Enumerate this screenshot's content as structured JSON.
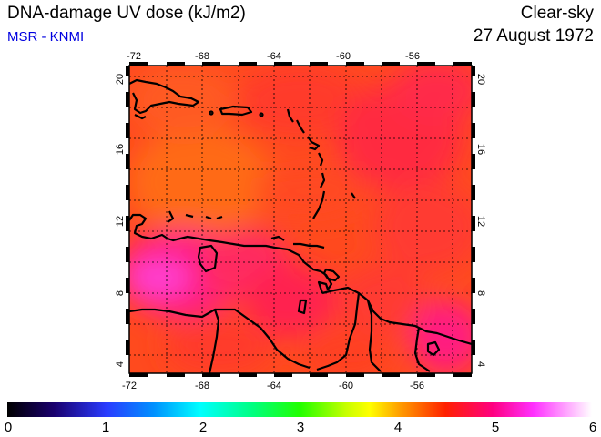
{
  "header": {
    "title": "DNA-damage UV dose (kJ/m2)",
    "source": "MSR - KNMI",
    "condition": "Clear-sky",
    "date": "27 August 1972"
  },
  "map": {
    "lon_range": [
      -72,
      -53
    ],
    "lat_range": [
      4,
      20
    ],
    "lon_ticks": [
      "-72",
      "-68",
      "-64",
      "-60",
      "-56"
    ],
    "lat_ticks": [
      "4",
      "8",
      "12",
      "16",
      "20"
    ],
    "grid": "dotted",
    "coastline_color": "#000000"
  },
  "colorbar": {
    "range": [
      0,
      6
    ],
    "tick_labels": [
      "0",
      "1",
      "2",
      "3",
      "4",
      "5",
      "6"
    ],
    "colors": [
      "#000000",
      "#2000ff",
      "#00ffff",
      "#00ff00",
      "#ffff00",
      "#ff0000",
      "#ff00ff",
      "#ffffff"
    ]
  }
}
